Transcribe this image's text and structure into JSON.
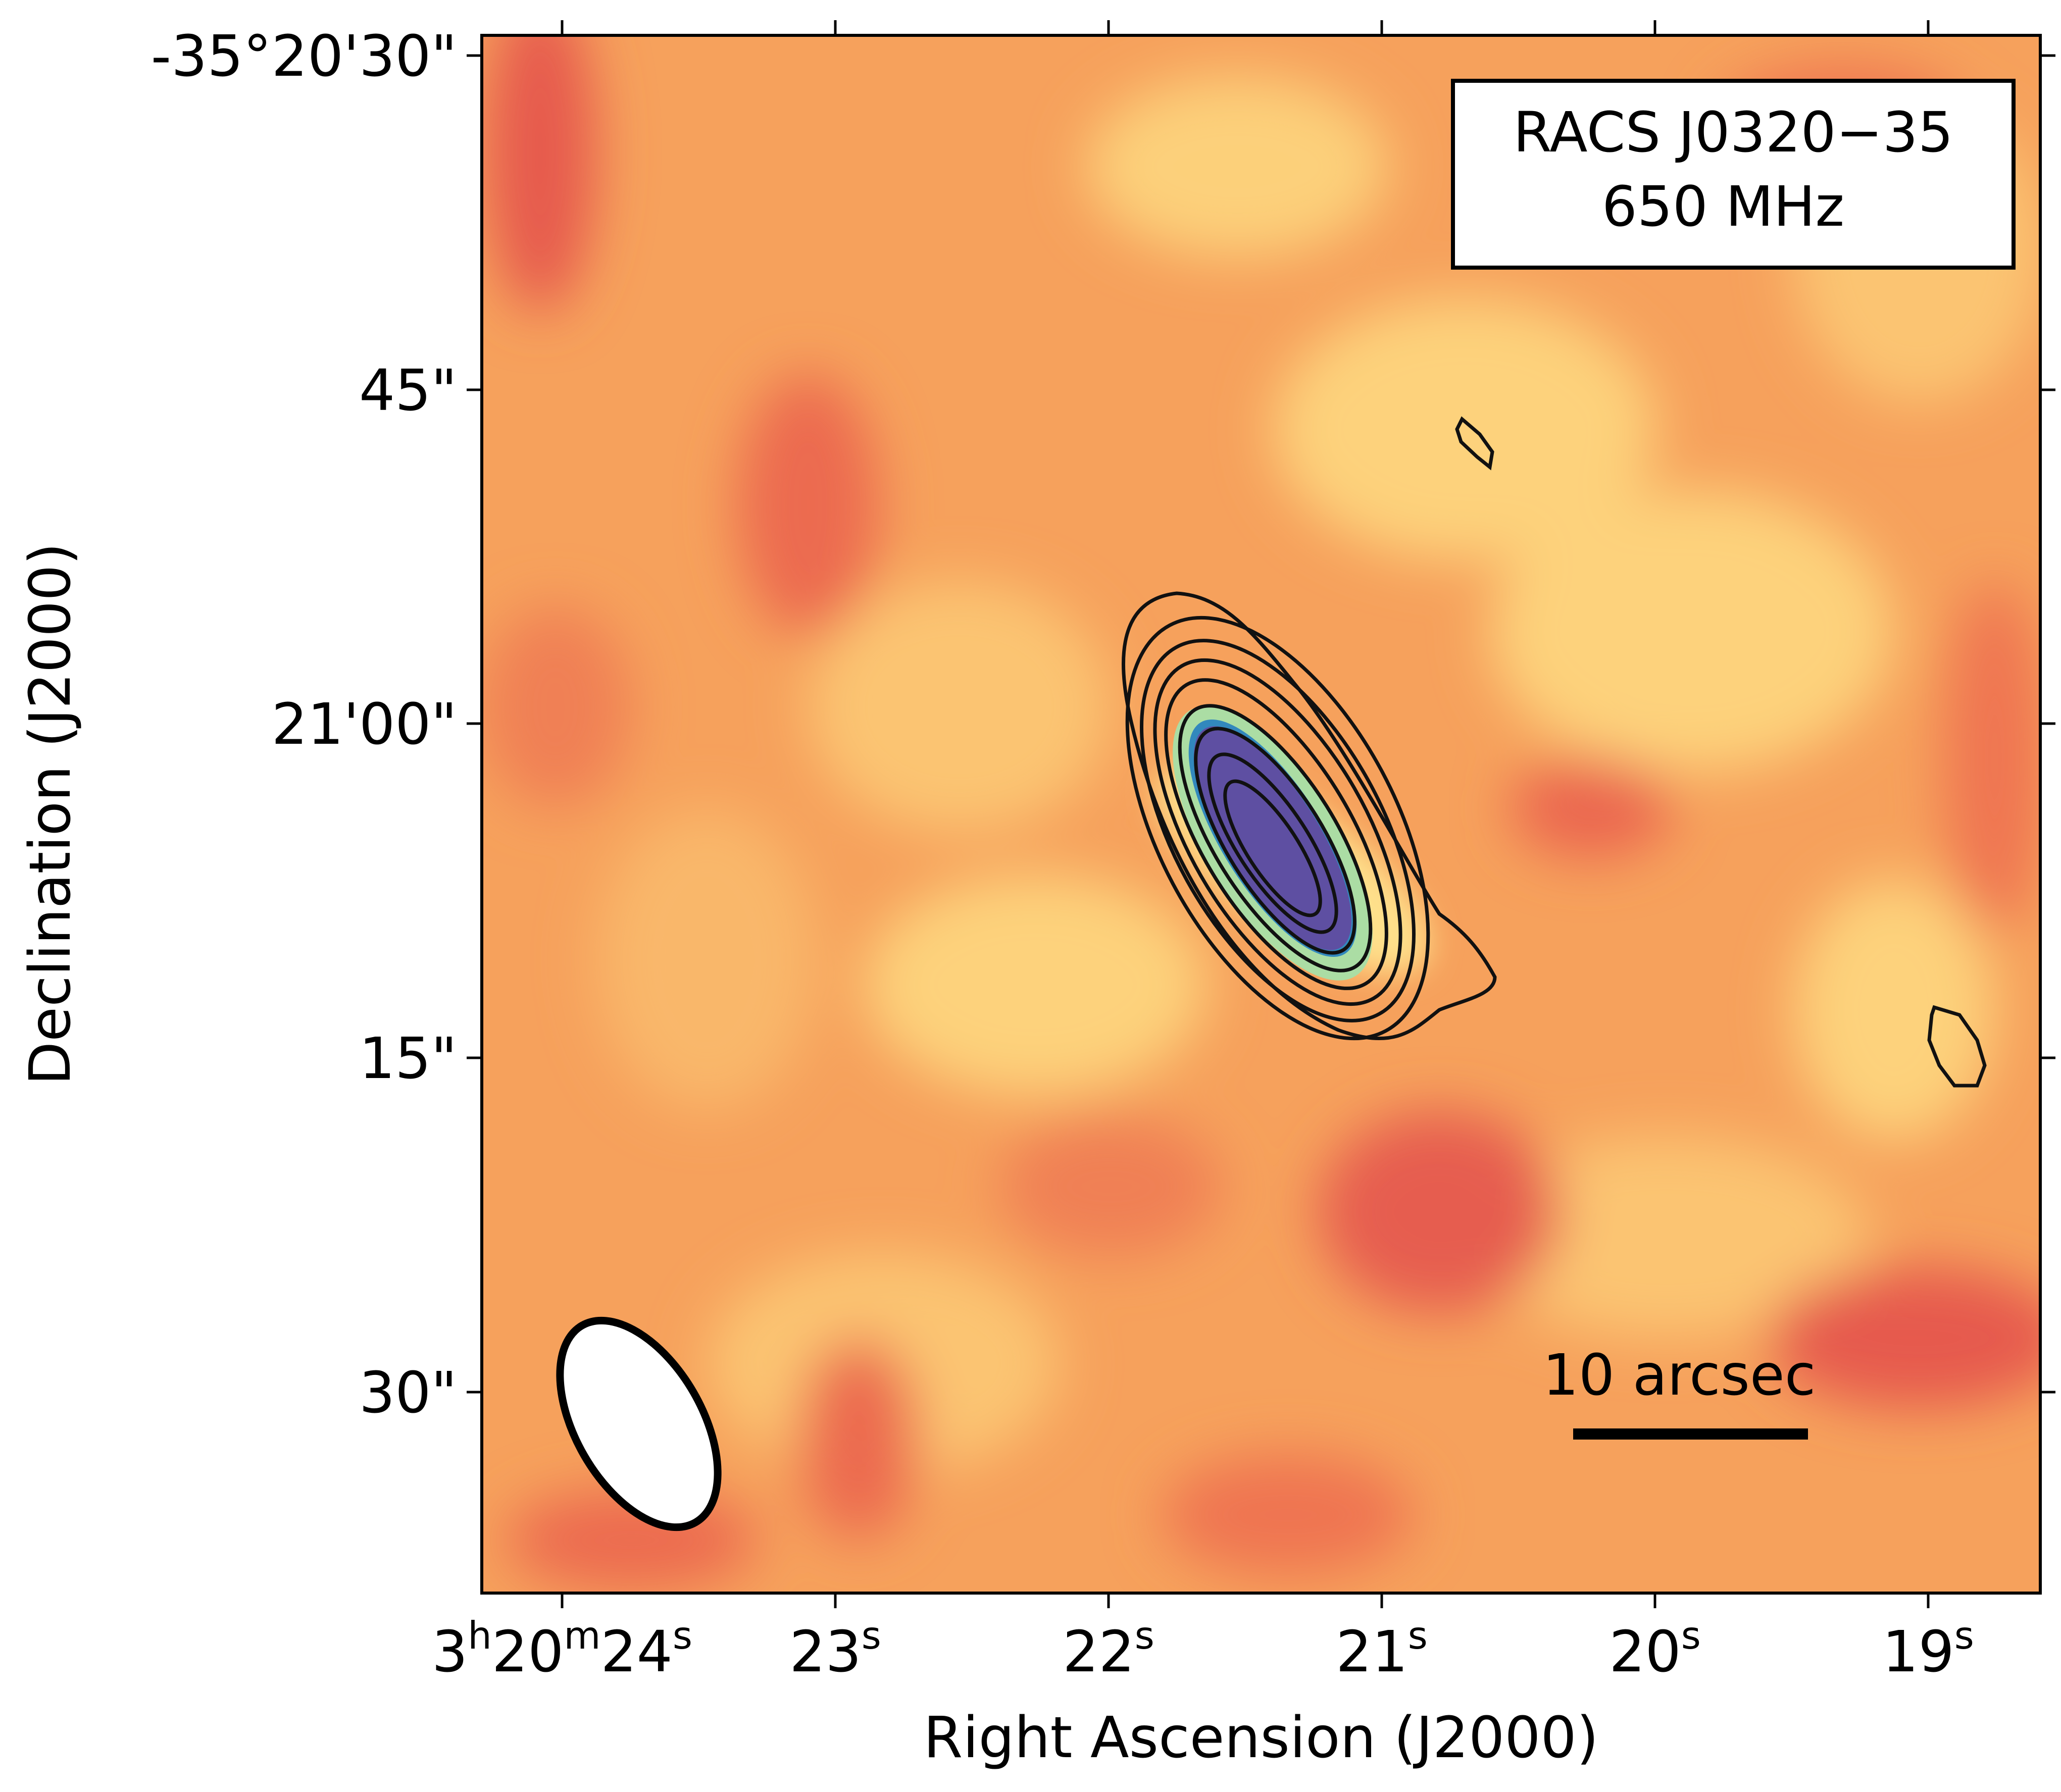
{
  "figure": {
    "label_box": {
      "line1": "RACS J0320−35",
      "line2": "650 MHz"
    },
    "scalebar_label": "10 arcsec",
    "xlabel": "Right Ascension (J2000)",
    "ylabel": "Declination (J2000)",
    "y_ticks": [
      "-35°20'30\"",
      "45\"",
      "21'00\"",
      "15\"",
      "30\""
    ],
    "x_ticks": [
      {
        "base": "3",
        "sup1": "h",
        "mid": "20",
        "sup2": "m",
        "tail": "24",
        "sup3": "s"
      },
      {
        "base": "23",
        "sup3": "s"
      },
      {
        "base": "22",
        "sup3": "s"
      },
      {
        "base": "21",
        "sup3": "s"
      },
      {
        "base": "20",
        "sup3": "s"
      },
      {
        "base": "19",
        "sup3": "s"
      }
    ],
    "colors": {
      "low": "#e3584f",
      "mid": "#f6a860",
      "high": "#fde08b",
      "core": "#5e4fa2",
      "halo": "#abdda4",
      "frame": "#000000"
    },
    "map_kind": "radio continuum image with contours and beam ellipse"
  }
}
